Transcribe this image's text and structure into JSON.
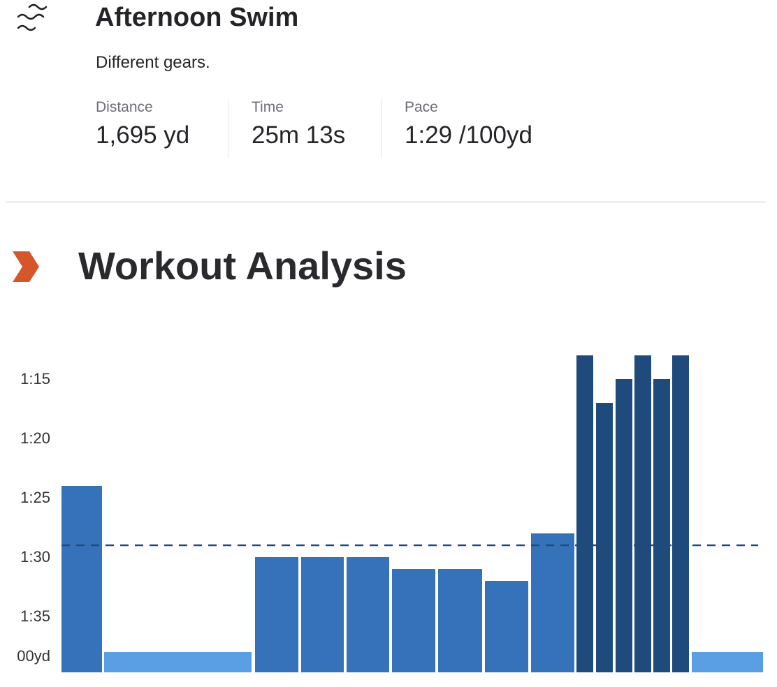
{
  "activity": {
    "icon": "water-waves-icon",
    "title": "Afternoon Swim",
    "description": "Different gears.",
    "stats": [
      {
        "label": "Distance",
        "value": "1,695 yd"
      },
      {
        "label": "Time",
        "value": "25m 13s"
      },
      {
        "label": "Pace",
        "value": "1:29 /100yd"
      }
    ]
  },
  "analysis": {
    "icon": "chevron-right-icon",
    "title": "Workout Analysis",
    "accent": "#d4562a"
  },
  "chart_data": {
    "type": "bar",
    "y_axis": {
      "ticks": [
        "1:15",
        "1:20",
        "1:25",
        "1:30",
        "1:35"
      ],
      "unit_label": "00yd",
      "inverted": true
    },
    "average_pace": "1:29",
    "bars": [
      {
        "pace": "1:24",
        "tone": "mid"
      },
      {
        "pace": "1:38",
        "tone": "light"
      },
      {
        "pace": "1:30",
        "tone": "mid"
      },
      {
        "pace": "1:30",
        "tone": "mid"
      },
      {
        "pace": "1:30",
        "tone": "mid"
      },
      {
        "pace": "1:31",
        "tone": "mid"
      },
      {
        "pace": "1:31",
        "tone": "mid"
      },
      {
        "pace": "1:32",
        "tone": "mid"
      },
      {
        "pace": "1:28",
        "tone": "mid"
      },
      {
        "pace": "1:13",
        "tone": "dark"
      },
      {
        "pace": "1:17",
        "tone": "dark"
      },
      {
        "pace": "1:15",
        "tone": "dark"
      },
      {
        "pace": "1:13",
        "tone": "dark"
      },
      {
        "pace": "1:15",
        "tone": "dark"
      },
      {
        "pace": "1:13",
        "tone": "dark"
      },
      {
        "pace": "1:38",
        "tone": "light"
      }
    ],
    "colors": {
      "light": "#5a9fe3",
      "mid": "#3672b9",
      "dark": "#1f4a7c",
      "average_line": "#1f4a7c"
    }
  }
}
